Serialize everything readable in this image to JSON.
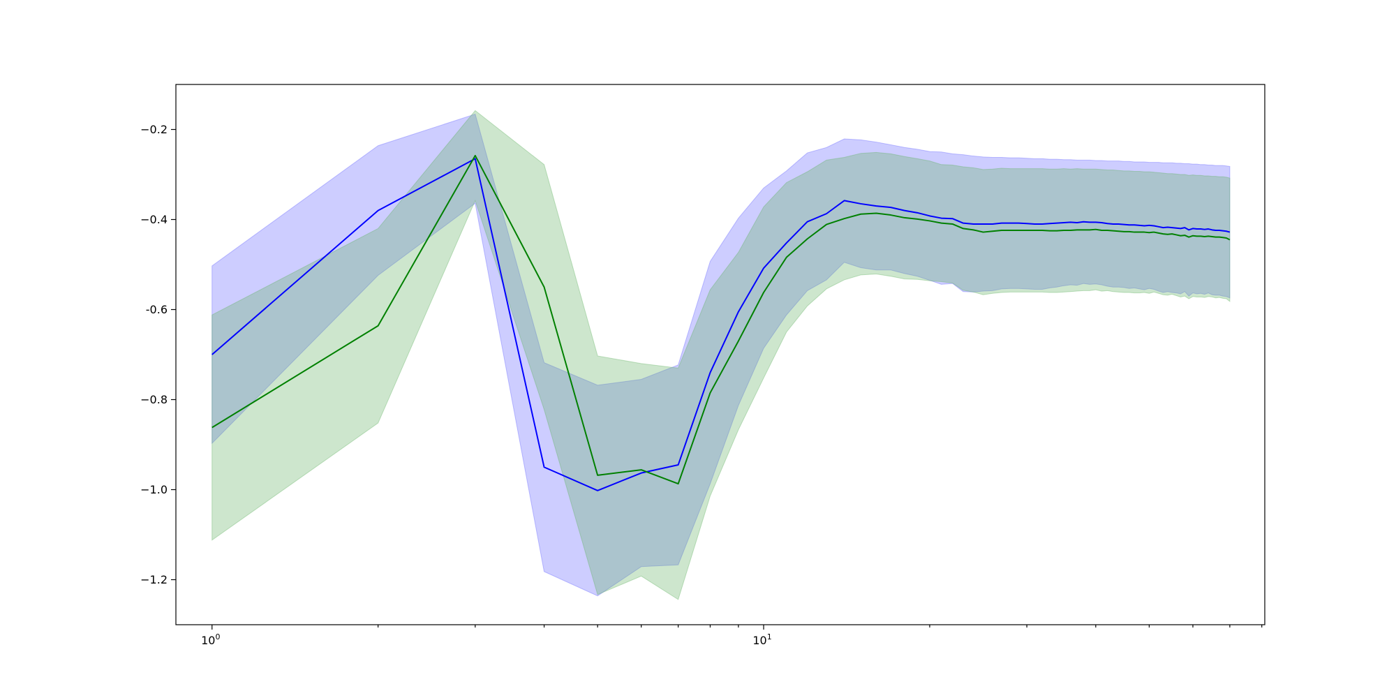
{
  "chart_data": {
    "type": "line",
    "title": "",
    "xlabel": "",
    "ylabel": "",
    "xscale": "log",
    "xlim": [
      0.86,
      81
    ],
    "ylim": [
      -1.3,
      -0.1
    ],
    "grid": false,
    "legend": "none",
    "x_ticks": [
      {
        "value": 1,
        "base": "10",
        "exp": "0"
      },
      {
        "value": 10,
        "base": "10",
        "exp": "1"
      }
    ],
    "x_minor_ticks": [
      2,
      3,
      4,
      5,
      6,
      7,
      8,
      9,
      20,
      30,
      40,
      50,
      60,
      70,
      80
    ],
    "y_ticks": [
      {
        "value": -0.2,
        "label": "−0.2"
      },
      {
        "value": -0.4,
        "label": "−0.4"
      },
      {
        "value": -0.6,
        "label": "-0.6"
      },
      {
        "value": -0.8,
        "label": "−0.8"
      },
      {
        "value": -1.0,
        "label": "−1.0"
      },
      {
        "value": -1.2,
        "label": "−1.2"
      }
    ],
    "x": [
      1,
      2,
      3,
      4,
      5,
      6,
      7,
      8,
      9,
      10,
      11,
      12,
      13,
      14,
      15,
      16,
      17,
      18,
      19,
      20,
      21,
      22,
      23,
      24,
      25,
      26,
      27,
      28,
      29,
      30,
      31,
      32,
      33,
      34,
      35,
      36,
      37,
      38,
      39,
      40,
      41,
      42,
      43,
      44,
      45,
      46,
      47,
      48,
      49,
      50,
      51,
      52,
      53,
      54,
      55,
      56,
      57,
      58,
      59,
      60,
      61,
      62,
      63,
      64,
      65,
      66,
      67,
      68,
      69,
      70
    ],
    "series": [
      {
        "color": "#0000ff",
        "band_color": "#6666ff",
        "band_opacity": 0.33,
        "mean": [
          -0.7,
          -0.38,
          -0.265,
          -0.95,
          -1.002,
          -0.963,
          -0.945,
          -0.74,
          -0.605,
          -0.508,
          -0.452,
          -0.405,
          -0.387,
          -0.358,
          -0.365,
          -0.37,
          -0.373,
          -0.38,
          -0.385,
          -0.392,
          -0.397,
          -0.398,
          -0.408,
          -0.41,
          -0.41,
          -0.41,
          -0.408,
          -0.408,
          -0.408,
          -0.409,
          -0.41,
          -0.41,
          -0.409,
          -0.408,
          -0.407,
          -0.406,
          -0.407,
          -0.405,
          -0.406,
          -0.406,
          -0.407,
          -0.409,
          -0.41,
          -0.41,
          -0.411,
          -0.412,
          -0.412,
          -0.413,
          -0.414,
          -0.413,
          -0.414,
          -0.416,
          -0.418,
          -0.417,
          -0.418,
          -0.419,
          -0.42,
          -0.418,
          -0.423,
          -0.42,
          -0.421,
          -0.421,
          -0.422,
          -0.421,
          -0.423,
          -0.424,
          -0.424,
          -0.425,
          -0.426,
          -0.428
        ],
        "upper": [
          -0.503,
          -0.236,
          -0.166,
          -0.718,
          -0.768,
          -0.755,
          -0.723,
          -0.493,
          -0.397,
          -0.33,
          -0.292,
          -0.252,
          -0.24,
          -0.221,
          -0.223,
          -0.228,
          -0.234,
          -0.24,
          -0.244,
          -0.249,
          -0.25,
          -0.254,
          -0.256,
          -0.259,
          -0.261,
          -0.262,
          -0.262,
          -0.263,
          -0.263,
          -0.264,
          -0.265,
          -0.265,
          -0.266,
          -0.266,
          -0.267,
          -0.267,
          -0.268,
          -0.268,
          -0.268,
          -0.269,
          -0.269,
          -0.27,
          -0.27,
          -0.27,
          -0.271,
          -0.271,
          -0.272,
          -0.272,
          -0.272,
          -0.273,
          -0.273,
          -0.273,
          -0.274,
          -0.274,
          -0.274,
          -0.275,
          -0.275,
          -0.276,
          -0.276,
          -0.277,
          -0.277,
          -0.278,
          -0.278,
          -0.279,
          -0.279,
          -0.28,
          -0.28,
          -0.28,
          -0.281,
          -0.282
        ],
        "lower": [
          -0.897,
          -0.524,
          -0.364,
          -1.182,
          -1.236,
          -1.171,
          -1.167,
          -0.987,
          -0.813,
          -0.686,
          -0.612,
          -0.558,
          -0.534,
          -0.495,
          -0.507,
          -0.512,
          -0.512,
          -0.52,
          -0.526,
          -0.535,
          -0.544,
          -0.542,
          -0.56,
          -0.561,
          -0.559,
          -0.558,
          -0.554,
          -0.553,
          -0.553,
          -0.554,
          -0.555,
          -0.555,
          -0.552,
          -0.55,
          -0.547,
          -0.545,
          -0.546,
          -0.542,
          -0.544,
          -0.543,
          -0.545,
          -0.548,
          -0.55,
          -0.55,
          -0.551,
          -0.553,
          -0.552,
          -0.554,
          -0.556,
          -0.553,
          -0.555,
          -0.559,
          -0.562,
          -0.56,
          -0.562,
          -0.563,
          -0.565,
          -0.56,
          -0.57,
          -0.563,
          -0.565,
          -0.564,
          -0.566,
          -0.563,
          -0.567,
          -0.568,
          -0.568,
          -0.57,
          -0.571,
          -0.574
        ]
      },
      {
        "color": "#008000",
        "band_color": "#66b366",
        "band_opacity": 0.33,
        "mean": [
          -0.862,
          -0.636,
          -0.258,
          -0.55,
          -0.968,
          -0.956,
          -0.987,
          -0.785,
          -0.67,
          -0.562,
          -0.484,
          -0.443,
          -0.411,
          -0.398,
          -0.388,
          -0.386,
          -0.39,
          -0.396,
          -0.399,
          -0.403,
          -0.408,
          -0.41,
          -0.42,
          -0.423,
          -0.428,
          -0.426,
          -0.424,
          -0.424,
          -0.424,
          -0.424,
          -0.424,
          -0.424,
          -0.425,
          -0.425,
          -0.424,
          -0.424,
          -0.423,
          -0.423,
          -0.423,
          -0.422,
          -0.424,
          -0.424,
          -0.425,
          -0.426,
          -0.427,
          -0.427,
          -0.428,
          -0.428,
          -0.428,
          -0.429,
          -0.428,
          -0.43,
          -0.432,
          -0.433,
          -0.432,
          -0.434,
          -0.436,
          -0.435,
          -0.439,
          -0.436,
          -0.437,
          -0.437,
          -0.438,
          -0.437,
          -0.438,
          -0.439,
          -0.439,
          -0.44,
          -0.441,
          -0.445
        ],
        "upper": [
          -0.612,
          -0.42,
          -0.158,
          -0.278,
          -0.703,
          -0.72,
          -0.73,
          -0.556,
          -0.473,
          -0.372,
          -0.318,
          -0.294,
          -0.268,
          -0.262,
          -0.253,
          -0.251,
          -0.254,
          -0.26,
          -0.265,
          -0.27,
          -0.278,
          -0.279,
          -0.283,
          -0.285,
          -0.289,
          -0.288,
          -0.286,
          -0.287,
          -0.287,
          -0.287,
          -0.287,
          -0.287,
          -0.288,
          -0.288,
          -0.287,
          -0.288,
          -0.287,
          -0.288,
          -0.288,
          -0.288,
          -0.289,
          -0.29,
          -0.29,
          -0.291,
          -0.292,
          -0.292,
          -0.293,
          -0.293,
          -0.294,
          -0.294,
          -0.295,
          -0.296,
          -0.297,
          -0.298,
          -0.298,
          -0.299,
          -0.3,
          -0.3,
          -0.302,
          -0.301,
          -0.302,
          -0.302,
          -0.303,
          -0.303,
          -0.304,
          -0.304,
          -0.305,
          -0.305,
          -0.306,
          -0.308
        ],
        "lower": [
          -1.112,
          -0.852,
          -0.358,
          -0.822,
          -1.233,
          -1.192,
          -1.244,
          -1.014,
          -0.867,
          -0.752,
          -0.65,
          -0.592,
          -0.554,
          -0.534,
          -0.523,
          -0.521,
          -0.526,
          -0.532,
          -0.533,
          -0.536,
          -0.538,
          -0.541,
          -0.557,
          -0.561,
          -0.567,
          -0.564,
          -0.562,
          -0.561,
          -0.561,
          -0.561,
          -0.561,
          -0.561,
          -0.562,
          -0.562,
          -0.561,
          -0.56,
          -0.559,
          -0.558,
          -0.558,
          -0.556,
          -0.559,
          -0.558,
          -0.56,
          -0.561,
          -0.562,
          -0.562,
          -0.563,
          -0.563,
          -0.562,
          -0.564,
          -0.561,
          -0.564,
          -0.567,
          -0.568,
          -0.566,
          -0.569,
          -0.572,
          -0.57,
          -0.576,
          -0.571,
          -0.572,
          -0.572,
          -0.573,
          -0.571,
          -0.572,
          -0.574,
          -0.573,
          -0.575,
          -0.576,
          -0.582
        ]
      }
    ]
  }
}
